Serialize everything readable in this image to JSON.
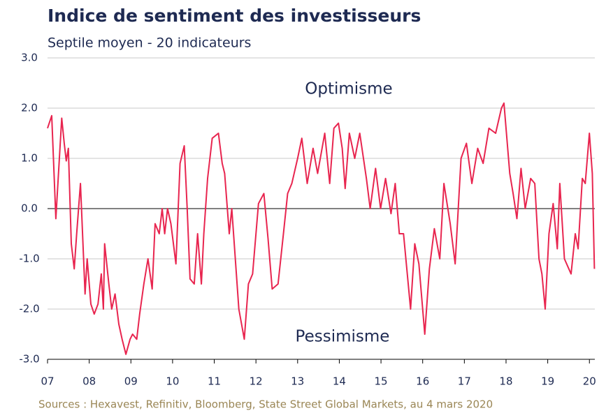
{
  "chart_data": {
    "type": "line",
    "title": "Indice de sentiment des investisseurs",
    "subtitle": "Septile moyen - 20 indicateurs",
    "annotations": [
      "Optimisme",
      "Pessimisme"
    ],
    "source": "Sources : Hexavest, Refinitiv, Bloomberg, State Street Global Markets, au 4 mars 2020",
    "x": [
      2007.0,
      2007.1,
      2007.2,
      2007.34,
      2007.4,
      2007.45,
      2007.5,
      2007.57,
      2007.64,
      2007.7,
      2007.79,
      2007.84,
      2007.9,
      2007.95,
      2008.04,
      2008.12,
      2008.21,
      2008.29,
      2008.34,
      2008.37,
      2008.47,
      2008.54,
      2008.62,
      2008.71,
      2008.79,
      2008.88,
      2008.98,
      2009.04,
      2009.14,
      2009.21,
      2009.31,
      2009.41,
      2009.51,
      2009.58,
      2009.68,
      2009.75,
      2009.81,
      2009.88,
      2009.96,
      2010.08,
      2010.18,
      2010.28,
      2010.35,
      2010.42,
      2010.52,
      2010.6,
      2010.69,
      2010.75,
      2010.84,
      2010.95,
      2011.1,
      2011.19,
      2011.25,
      2011.36,
      2011.42,
      2011.59,
      2011.72,
      2011.82,
      2011.92,
      2012.06,
      2012.19,
      2012.29,
      2012.39,
      2012.53,
      2012.66,
      2012.76,
      2012.86,
      2013.0,
      2013.1,
      2013.23,
      2013.37,
      2013.48,
      2013.65,
      2013.77,
      2013.87,
      2013.98,
      2014.07,
      2014.14,
      2014.24,
      2014.37,
      2014.49,
      2014.65,
      2014.74,
      2014.87,
      2014.99,
      2015.11,
      2015.24,
      2015.34,
      2015.44,
      2015.54,
      2015.71,
      2015.81,
      2015.91,
      2016.05,
      2016.16,
      2016.28,
      2016.41,
      2016.51,
      2016.66,
      2016.78,
      2016.92,
      2017.05,
      2017.18,
      2017.32,
      2017.45,
      2017.59,
      2017.75,
      2017.89,
      2017.95,
      2018.09,
      2018.17,
      2018.26,
      2018.36,
      2018.46,
      2018.59,
      2018.69,
      2018.79,
      2018.86,
      2018.94,
      2019.03,
      2019.13,
      2019.23,
      2019.29,
      2019.4,
      2019.56,
      2019.66,
      2019.73,
      2019.83,
      2019.9,
      2020.0,
      2020.07,
      2020.12
    ],
    "series": [
      {
        "color": "#e8254f",
        "values": [
          1.6,
          1.85,
          -0.2,
          1.8,
          1.3,
          0.95,
          1.2,
          -0.7,
          -1.2,
          -0.5,
          0.5,
          -0.5,
          -1.7,
          -1.0,
          -1.9,
          -2.1,
          -1.9,
          -1.3,
          -2.0,
          -0.7,
          -1.5,
          -2.0,
          -1.7,
          -2.3,
          -2.6,
          -2.9,
          -2.6,
          -2.5,
          -2.6,
          -2.1,
          -1.5,
          -1.0,
          -1.6,
          -0.3,
          -0.5,
          0.0,
          -0.5,
          0.0,
          -0.3,
          -1.1,
          0.9,
          1.25,
          0.0,
          -1.4,
          -1.5,
          -0.5,
          -1.5,
          -0.5,
          0.6,
          1.4,
          1.5,
          0.9,
          0.7,
          -0.5,
          0.0,
          -2.0,
          -2.6,
          -1.5,
          -1.3,
          0.1,
          0.3,
          -0.6,
          -1.6,
          -1.5,
          -0.5,
          0.3,
          0.5,
          1.0,
          1.4,
          0.5,
          1.2,
          0.7,
          1.5,
          0.5,
          1.6,
          1.7,
          1.2,
          0.4,
          1.5,
          1.0,
          1.5,
          0.6,
          0.0,
          0.8,
          0.0,
          0.6,
          -0.1,
          0.5,
          -0.5,
          -0.5,
          -2.0,
          -0.7,
          -1.1,
          -2.5,
          -1.2,
          -0.4,
          -1.0,
          0.5,
          -0.3,
          -1.1,
          1.0,
          1.3,
          0.5,
          1.2,
          0.9,
          1.6,
          1.5,
          2.0,
          2.1,
          0.7,
          0.3,
          -0.2,
          0.8,
          0.0,
          0.6,
          0.5,
          -1.0,
          -1.3,
          -2.0,
          -0.5,
          0.1,
          -0.8,
          0.5,
          -1.0,
          -1.3,
          -0.5,
          -0.8,
          0.6,
          0.5,
          1.5,
          0.7,
          -1.2
        ]
      }
    ],
    "xlim": [
      2007,
      2020.13
    ],
    "xticks": [
      {
        "value": 2007,
        "label": "07"
      },
      {
        "value": 2008,
        "label": "08"
      },
      {
        "value": 2009,
        "label": "09"
      },
      {
        "value": 2010,
        "label": "10"
      },
      {
        "value": 2011,
        "label": "11"
      },
      {
        "value": 2012,
        "label": "12"
      },
      {
        "value": 2013,
        "label": "13"
      },
      {
        "value": 2014,
        "label": "14"
      },
      {
        "value": 2015,
        "label": "15"
      },
      {
        "value": 2016,
        "label": "16"
      },
      {
        "value": 2017,
        "label": "17"
      },
      {
        "value": 2018,
        "label": "18"
      },
      {
        "value": 2019,
        "label": "19"
      },
      {
        "value": 2020,
        "label": "20"
      }
    ],
    "ylim": [
      -3,
      3
    ],
    "yticks": [
      {
        "value": -3,
        "label": "-3.0"
      },
      {
        "value": -2,
        "label": "-2.0"
      },
      {
        "value": -1,
        "label": "-1.0"
      },
      {
        "value": 0,
        "label": "0.0"
      },
      {
        "value": 1,
        "label": "1.0"
      },
      {
        "value": 2,
        "label": "2.0"
      },
      {
        "value": 3,
        "label": "3.0"
      }
    ],
    "grid": true
  }
}
